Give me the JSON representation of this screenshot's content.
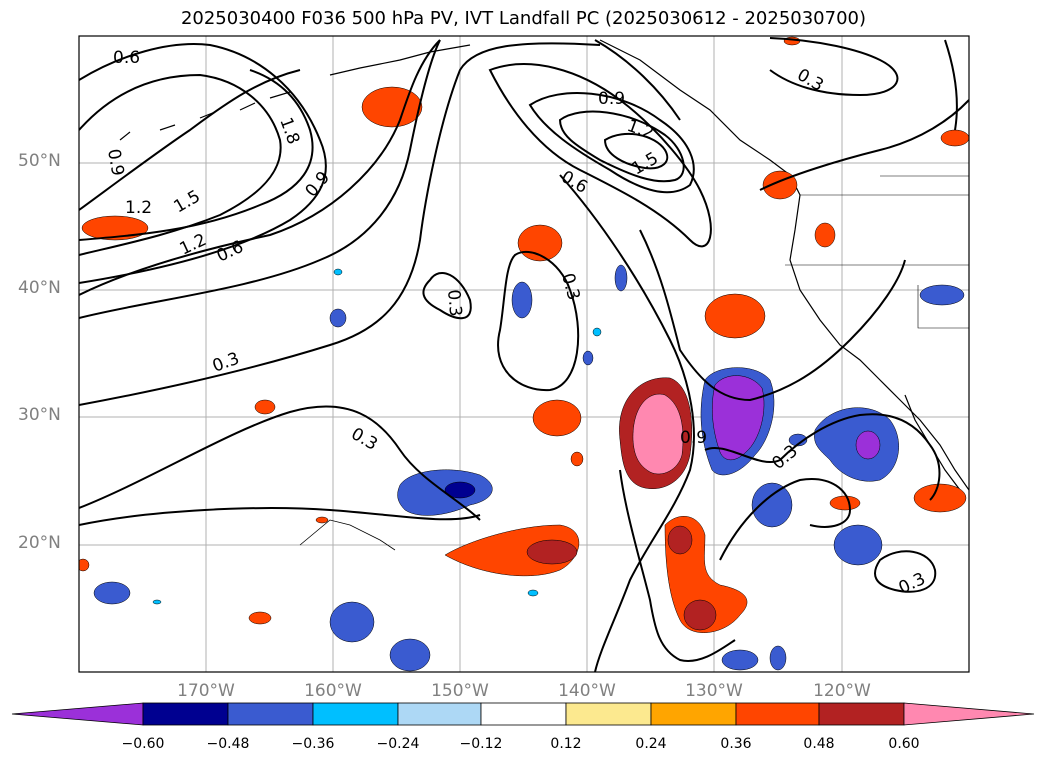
{
  "title": "2025030400 F036 500 hPa PV, IVT Landfall PC (2025030612 - 2025030700)",
  "map": {
    "lat_labels": [
      "50°N",
      "40°N",
      "30°N",
      "20°N"
    ],
    "lon_labels": [
      "170°W",
      "160°W",
      "150°W",
      "140°W",
      "130°W",
      "120°W"
    ],
    "contour_labels": [
      "0.6",
      "1.8",
      "0.9",
      "1.2",
      "1.5",
      "1.2",
      "0.6",
      "0.9",
      "0.9",
      "1.2",
      "1.5",
      "0.6",
      "0.3",
      "0.3",
      "0.3",
      "0.3",
      "0.3",
      "0.9",
      "0.3",
      "0.3"
    ]
  },
  "colorbar": {
    "ticks": [
      "−0.60",
      "−0.48",
      "−0.36",
      "−0.24",
      "−0.12",
      "0.12",
      "0.24",
      "0.36",
      "0.48",
      "0.60"
    ],
    "colors": [
      "#9b30d9",
      "#000090",
      "#3a5bd0",
      "#00bfff",
      "#add8f5",
      "#ffffff",
      "#fce98f",
      "#ffa500",
      "#ff4500",
      "#b22222",
      "#ff88b0",
      "#ff88b0"
    ]
  }
}
